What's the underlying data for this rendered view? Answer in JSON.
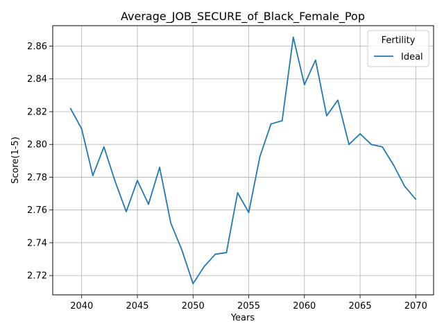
{
  "chart_data": {
    "type": "line",
    "title": "Average_JOB_SECURE_of_Black_Female_Pop",
    "xlabel": "Years",
    "ylabel": "Score(1-5)",
    "xlim": [
      2037.4,
      2071.6
    ],
    "ylim": [
      2.7082,
      2.8725
    ],
    "xticks": [
      2040,
      2045,
      2050,
      2055,
      2060,
      2065,
      2070
    ],
    "yticks": [
      2.72,
      2.74,
      2.76,
      2.78,
      2.8,
      2.82,
      2.84,
      2.86
    ],
    "grid": true,
    "legend": {
      "title": "Fertility",
      "placement": "top-right"
    },
    "series": [
      {
        "name": "Ideal",
        "color": "#1f77b4",
        "x": [
          2039,
          2040,
          2041,
          2042,
          2043,
          2044,
          2045,
          2046,
          2047,
          2048,
          2049,
          2050,
          2051,
          2052,
          2053,
          2054,
          2055,
          2056,
          2057,
          2058,
          2059,
          2060,
          2061,
          2062,
          2063,
          2064,
          2065,
          2066,
          2067,
          2068,
          2069,
          2070
        ],
        "y": [
          2.822,
          2.8095,
          2.781,
          2.7985,
          2.7775,
          2.759,
          2.778,
          2.7635,
          2.786,
          2.752,
          2.7355,
          2.715,
          2.7255,
          2.733,
          2.734,
          2.7705,
          2.7585,
          2.7925,
          2.8125,
          2.8145,
          2.8655,
          2.8365,
          2.8515,
          2.8175,
          2.827,
          2.8,
          2.8065,
          2.8,
          2.7985,
          2.7875,
          2.7745,
          2.7665
        ]
      }
    ]
  }
}
